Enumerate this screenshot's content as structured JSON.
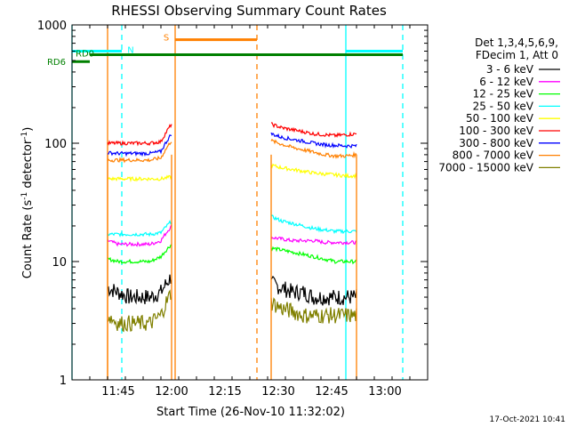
{
  "chart_data": {
    "type": "line",
    "title": "RHESSI Observing Summary Count Rates",
    "xlabel": "Start Time (26-Nov-10 11:32:02)",
    "ylabel_main": "Count Rate (s",
    "ylabel_sup1": "-1",
    "ylabel_mid": " detector",
    "ylabel_sup2": "-1",
    "ylabel_end": ")",
    "y_scale": "log",
    "ylim": [
      1,
      1000
    ],
    "xlim": [
      "11:32",
      "13:12"
    ],
    "x_ticks": [
      "11:45",
      "12:00",
      "12:15",
      "12:30",
      "12:45",
      "13:00"
    ],
    "y_ticks": [
      "1",
      "10",
      "100",
      "1000"
    ],
    "timestamp": "17-Oct-2021 10:41",
    "legend_header": [
      "Det 1,3,4,5,6,9,",
      "FDecim 1, Att 0"
    ],
    "series": [
      {
        "name": "3 - 6 keV",
        "color": "#000000",
        "seg1": [
          6.0,
          5.5,
          5.0,
          5.0,
          5.0,
          5.5,
          7.5
        ],
        "seg2": [
          6.5,
          6.0,
          5.5,
          5.5,
          5.0,
          5.0,
          5.0,
          5.0,
          5.0
        ]
      },
      {
        "name": "6 - 12 keV",
        "color": "#ff00ff",
        "seg1": [
          15,
          14,
          14,
          14,
          14,
          15,
          20
        ],
        "seg2": [
          16,
          15.5,
          15,
          15,
          15,
          14.5,
          14.5,
          14.5,
          14.5
        ]
      },
      {
        "name": "12 - 25 keV",
        "color": "#00ff00",
        "seg1": [
          10.5,
          10,
          10,
          10,
          10,
          11,
          14
        ],
        "seg2": [
          13,
          12.5,
          12,
          11.5,
          11,
          10.5,
          10,
          10,
          10
        ]
      },
      {
        "name": "25 - 50 keV",
        "color": "#00ffff",
        "seg1": [
          17,
          17,
          17,
          17,
          17,
          17.5,
          22
        ],
        "seg2": [
          24,
          22,
          21,
          20,
          19,
          18.5,
          18,
          18,
          18
        ]
      },
      {
        "name": "50 - 100 keV",
        "color": "#ffff00",
        "seg1": [
          50,
          50,
          50,
          50,
          50,
          50,
          52
        ],
        "seg2": [
          65,
          62,
          60,
          58,
          56,
          55,
          54,
          53,
          53
        ]
      },
      {
        "name": "100 - 300 keV",
        "color": "#ff0000",
        "seg1": [
          100,
          100,
          100,
          100,
          100,
          103,
          145
        ],
        "seg2": [
          145,
          135,
          130,
          125,
          120,
          118,
          116,
          118,
          120
        ]
      },
      {
        "name": "300 - 800 keV",
        "color": "#0000ff",
        "seg1": [
          83,
          82,
          82,
          82,
          82,
          85,
          120
        ],
        "seg2": [
          120,
          112,
          108,
          104,
          100,
          97,
          96,
          95,
          95
        ]
      },
      {
        "name": "800 - 7000 keV",
        "color": "#ff8000",
        "seg1": [
          72,
          72,
          72,
          72,
          72,
          75,
          105
        ],
        "seg2": [
          105,
          98,
          92,
          88,
          84,
          80,
          78,
          78,
          80
        ]
      },
      {
        "name": "7000 - 15000 keV",
        "color": "#808000",
        "seg1": [
          3.5,
          3.0,
          3.0,
          3.0,
          3.0,
          3.5,
          5.5
        ],
        "seg2": [
          4.5,
          4.0,
          3.8,
          3.5,
          3.5,
          3.5,
          3.5,
          3.5,
          3.5
        ]
      }
    ],
    "segments": [
      {
        "start": "11:42",
        "end": "12:00"
      },
      {
        "start": "12:28",
        "end": "12:52"
      }
    ],
    "annotations": {
      "N": {
        "label": "N",
        "color": "#00ffff",
        "value": 600,
        "bars": [
          [
            "11:32",
            "11:46"
          ],
          [
            "12:49",
            "13:05"
          ]
        ],
        "solid_lines": [
          "11:32",
          "12:49"
        ],
        "dashed_lines": [
          "11:46",
          "13:05"
        ]
      },
      "S": {
        "label": "S",
        "color": "#ff8000",
        "value": 750,
        "bars": [
          [
            "12:01",
            "12:24"
          ]
        ],
        "solid_lines": [
          "11:42",
          "12:01"
        ],
        "dashed_lines": [
          "12:24"
        ]
      },
      "RD0": {
        "label": "RD0",
        "color": "#008000",
        "value": 560,
        "bars": [
          [
            "11:37",
            "13:05"
          ]
        ]
      },
      "RD6": {
        "label": "RD6",
        "color": "#008000",
        "value": 490,
        "bars": [
          [
            "11:32",
            "11:37"
          ]
        ]
      }
    }
  }
}
